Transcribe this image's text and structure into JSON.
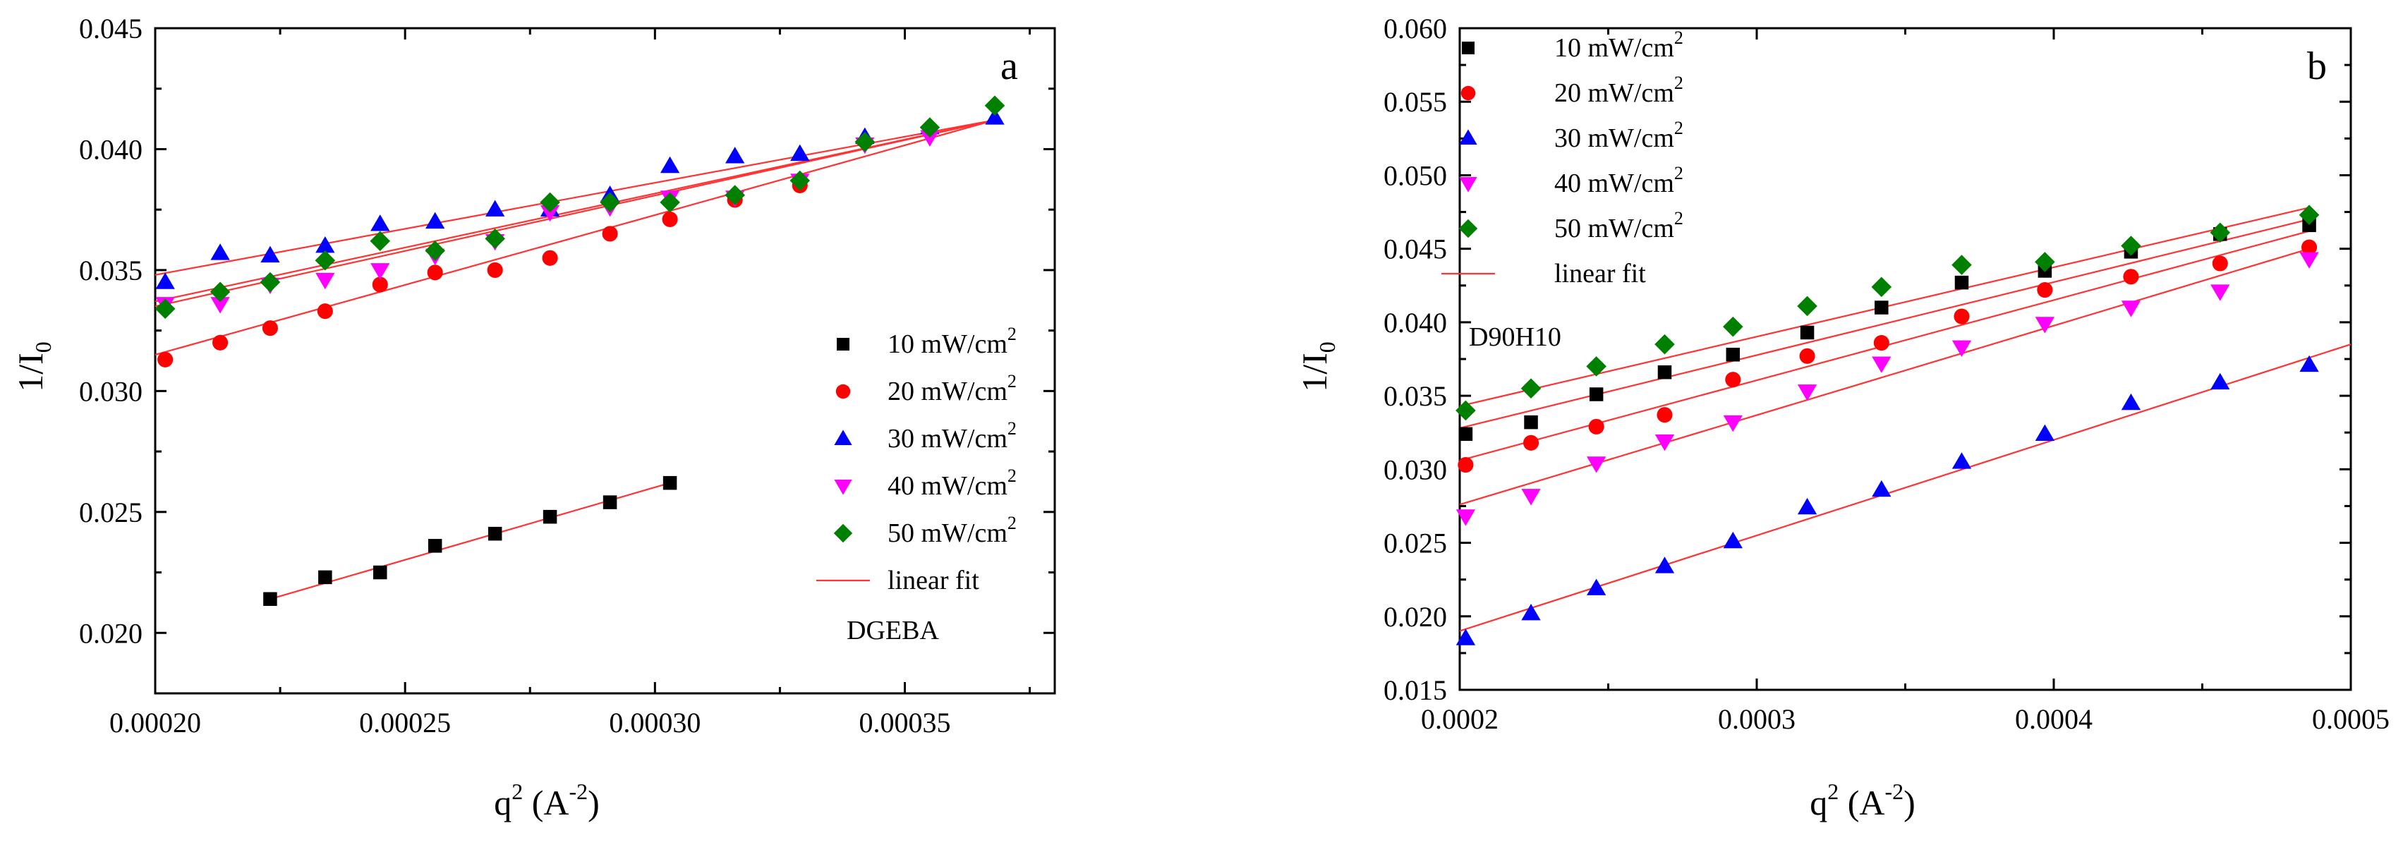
{
  "chart_data": [
    {
      "id": "a",
      "type": "scatter",
      "panel_label": "a",
      "annotation": "DGEBA",
      "xlabel": {
        "base": "q",
        "sup": "2",
        "mid": " (A",
        "sup2": "-2",
        "end": ")"
      },
      "ylabel": {
        "base": "1/I",
        "sub": "0"
      },
      "xlim": [
        0.0002,
        0.00038
      ],
      "ylim": [
        0.0175,
        0.045
      ],
      "x_ticks": [
        0.0002,
        0.00025,
        0.0003,
        0.00035
      ],
      "x_tick_labels": [
        "0.00020",
        "0.00025",
        "0.00030",
        "0.00035"
      ],
      "y_ticks": [
        0.02,
        0.025,
        0.03,
        0.035,
        0.04,
        0.045
      ],
      "y_tick_labels": [
        "0.020",
        "0.025",
        "0.030",
        "0.035",
        "0.040",
        "0.045"
      ],
      "legend_position": "center-right",
      "legend_fit_label": "linear fit",
      "series": [
        {
          "name": "10 mW/cm",
          "unit_sup": "2",
          "marker": "square",
          "color": "#000000",
          "x": [
            0.000223,
            0.000234,
            0.000245,
            0.000256,
            0.000268,
            0.000279,
            0.000291,
            0.000303
          ],
          "y": [
            0.0214,
            0.0223,
            0.0225,
            0.0236,
            0.0241,
            0.0248,
            0.0254,
            0.0262
          ],
          "fit": [
            [
              0.000223,
              0.0214
            ],
            [
              0.000303,
              0.0262
            ]
          ]
        },
        {
          "name": "20 mW/cm",
          "unit_sup": "2",
          "marker": "circle",
          "color": "#ff0000",
          "x": [
            0.000202,
            0.000213,
            0.000223,
            0.000234,
            0.000245,
            0.000256,
            0.000268,
            0.000279,
            0.000291,
            0.000303,
            0.000316,
            0.000329
          ],
          "y": [
            0.0313,
            0.032,
            0.0326,
            0.0333,
            0.0344,
            0.0349,
            0.035,
            0.0355,
            0.0365,
            0.0371,
            0.0379,
            0.0385
          ],
          "fit": [
            [
              0.0002,
              0.0315
            ],
            [
              0.000368,
              0.0412
            ]
          ]
        },
        {
          "name": "30 mW/cm",
          "unit_sup": "2",
          "marker": "triangle-up",
          "color": "#0000ff",
          "x": [
            0.000202,
            0.000213,
            0.000223,
            0.000234,
            0.000245,
            0.000256,
            0.000268,
            0.000279,
            0.000291,
            0.000303,
            0.000316,
            0.000329,
            0.000342,
            0.000355,
            0.000368
          ],
          "y": [
            0.0345,
            0.0357,
            0.0356,
            0.036,
            0.0369,
            0.037,
            0.0375,
            0.0375,
            0.0381,
            0.0393,
            0.0397,
            0.0398,
            0.0405,
            0.0409,
            0.0413
          ],
          "fit": [
            [
              0.0002,
              0.0348
            ],
            [
              0.000368,
              0.0412
            ]
          ]
        },
        {
          "name": "40 mW/cm",
          "unit_sup": "2",
          "marker": "triangle-down",
          "color": "#ff00ff",
          "x": [
            0.000202,
            0.000213,
            0.000223,
            0.000234,
            0.000245,
            0.000256,
            0.000268,
            0.000279,
            0.000291,
            0.000303,
            0.000316,
            0.000329,
            0.000342,
            0.000355
          ],
          "y": [
            0.0336,
            0.0336,
            0.0344,
            0.0346,
            0.035,
            0.0356,
            0.0362,
            0.0374,
            0.0376,
            0.038,
            0.038,
            0.0387,
            0.0402,
            0.0405
          ],
          "fit": [
            [
              0.0002,
              0.0335
            ],
            [
              0.000368,
              0.0412
            ]
          ]
        },
        {
          "name": "50 mW/cm",
          "unit_sup": "2",
          "marker": "diamond",
          "color": "#008000",
          "x": [
            0.000202,
            0.000213,
            0.000223,
            0.000234,
            0.000245,
            0.000256,
            0.000268,
            0.000279,
            0.000291,
            0.000303,
            0.000316,
            0.000329,
            0.000342,
            0.000355,
            0.000368
          ],
          "y": [
            0.0334,
            0.0341,
            0.0345,
            0.0354,
            0.0362,
            0.0358,
            0.0363,
            0.0378,
            0.0378,
            0.0378,
            0.0381,
            0.0387,
            0.0403,
            0.0409,
            0.0418
          ],
          "fit": [
            [
              0.0002,
              0.0337
            ],
            [
              0.000368,
              0.0412
            ]
          ]
        }
      ]
    },
    {
      "id": "b",
      "type": "scatter",
      "panel_label": "b",
      "annotation": "D90H10",
      "xlabel": {
        "base": "q",
        "sup": "2",
        "mid": " (A",
        "sup2": "-2",
        "end": ")"
      },
      "ylabel": {
        "base": "1/I",
        "sub": "0"
      },
      "xlim": [
        0.0002,
        0.0005
      ],
      "ylim": [
        0.015,
        0.06
      ],
      "x_ticks": [
        0.0002,
        0.0003,
        0.0004,
        0.0005
      ],
      "x_tick_labels": [
        "0.0002",
        "0.0003",
        "0.0004",
        "0.0005"
      ],
      "y_ticks": [
        0.015,
        0.02,
        0.025,
        0.03,
        0.035,
        0.04,
        0.045,
        0.05,
        0.055,
        0.06
      ],
      "y_tick_labels": [
        "0.015",
        "0.020",
        "0.025",
        "0.030",
        "0.035",
        "0.040",
        "0.045",
        "0.050",
        "0.055",
        "0.060"
      ],
      "legend_position": "top-left",
      "legend_fit_label": "linear fit",
      "series": [
        {
          "name": "10 mW/cm",
          "unit_sup": "2",
          "marker": "square",
          "color": "#000000",
          "x": [
            0.000202,
            0.000224,
            0.000246,
            0.000269,
            0.000292,
            0.000317,
            0.000342,
            0.000369,
            0.000397,
            0.000426,
            0.000456,
            0.000486
          ],
          "y": [
            0.0324,
            0.0332,
            0.0351,
            0.0366,
            0.0378,
            0.0393,
            0.041,
            0.0427,
            0.0435,
            0.0448,
            0.046,
            0.0466
          ],
          "fit": [
            [
              0.0002,
              0.0328
            ],
            [
              0.000486,
              0.047
            ]
          ]
        },
        {
          "name": "20 mW/cm",
          "unit_sup": "2",
          "marker": "circle",
          "color": "#ff0000",
          "x": [
            0.000202,
            0.000224,
            0.000246,
            0.000269,
            0.000292,
            0.000317,
            0.000342,
            0.000369,
            0.000397,
            0.000426,
            0.000456,
            0.000486
          ],
          "y": [
            0.0303,
            0.0318,
            0.0329,
            0.0337,
            0.0361,
            0.0377,
            0.0386,
            0.0404,
            0.0422,
            0.0431,
            0.044,
            0.0451
          ],
          "fit": [
            [
              0.0002,
              0.0306
            ],
            [
              0.000486,
              0.0462
            ]
          ]
        },
        {
          "name": "30 mW/cm",
          "unit_sup": "2",
          "marker": "triangle-up",
          "color": "#0000ff",
          "x": [
            0.000202,
            0.000224,
            0.000246,
            0.000269,
            0.000292,
            0.000317,
            0.000342,
            0.000369,
            0.000397,
            0.000426,
            0.000456,
            0.000486
          ],
          "y": [
            0.0185,
            0.0202,
            0.0219,
            0.0234,
            0.0251,
            0.0274,
            0.0286,
            0.0305,
            0.0324,
            0.0345,
            0.0359,
            0.0371
          ],
          "fit": [
            [
              0.0002,
              0.019
            ],
            [
              0.0005,
              0.0385
            ]
          ]
        },
        {
          "name": "40 mW/cm",
          "unit_sup": "2",
          "marker": "triangle-down",
          "color": "#ff00ff",
          "x": [
            0.000202,
            0.000224,
            0.000246,
            0.000269,
            0.000292,
            0.000317,
            0.000342,
            0.000369,
            0.000397,
            0.000426,
            0.000456,
            0.000486
          ],
          "y": [
            0.0268,
            0.0282,
            0.0304,
            0.0319,
            0.0332,
            0.0353,
            0.0372,
            0.0383,
            0.0399,
            0.041,
            0.0421,
            0.0443
          ],
          "fit": [
            [
              0.0002,
              0.0276
            ],
            [
              0.000486,
              0.045
            ]
          ]
        },
        {
          "name": "50 mW/cm",
          "unit_sup": "2",
          "marker": "diamond",
          "color": "#008000",
          "x": [
            0.000202,
            0.000224,
            0.000246,
            0.000269,
            0.000292,
            0.000317,
            0.000342,
            0.000369,
            0.000397,
            0.000426,
            0.000456,
            0.000486
          ],
          "y": [
            0.034,
            0.0355,
            0.037,
            0.0385,
            0.0397,
            0.0411,
            0.0424,
            0.0439,
            0.0441,
            0.0452,
            0.0461,
            0.0473
          ],
          "fit": [
            [
              0.0002,
              0.0343
            ],
            [
              0.000486,
              0.0478
            ]
          ]
        }
      ]
    }
  ]
}
